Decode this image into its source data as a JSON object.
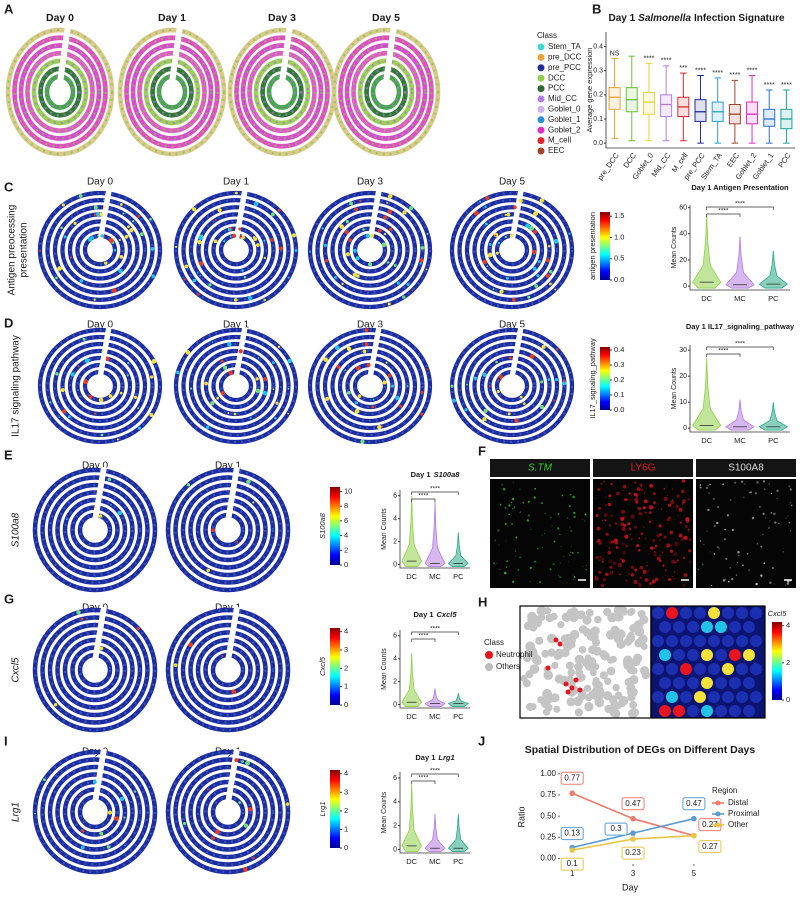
{
  "panels": {
    "A": {
      "letter": "A",
      "days": [
        "Day 0",
        "Day 1",
        "Day 3",
        "Day 5"
      ],
      "legend_title": "Class",
      "classes": [
        {
          "name": "Stem_TA",
          "color": "#3fd8d0"
        },
        {
          "name": "pre_DCC",
          "color": "#e8a23a"
        },
        {
          "name": "pre_PCC",
          "color": "#1f2d96"
        },
        {
          "name": "DCC",
          "color": "#8fcf4a"
        },
        {
          "name": "PCC",
          "color": "#2b6b2e"
        },
        {
          "name": "Mid_CC",
          "color": "#b57be0"
        },
        {
          "name": "Goblet_0",
          "color": "#cdb0ea"
        },
        {
          "name": "Goblet_1",
          "color": "#2a8fd6"
        },
        {
          "name": "Goblet_2",
          "color": "#e22cc6"
        },
        {
          "name": "M_cell",
          "color": "#e0262a"
        },
        {
          "name": "EEC",
          "color": "#a2432a"
        }
      ]
    },
    "B": {
      "letter": "B"
    },
    "C": {
      "letter": "C",
      "row_label": [
        "Antigen preocessing",
        "presentation"
      ],
      "days": [
        "Day 0",
        "Day 1",
        "Day 3",
        "Day 5"
      ],
      "colorbar": {
        "label": "antigen presentation",
        "lim": [
          0,
          1.6
        ],
        "ticks": [
          {
            "value": 0,
            "label": "0.0"
          },
          0.5,
          {
            "value": 1,
            "label": "1.0"
          },
          1.5
        ]
      }
    },
    "D": {
      "letter": "D",
      "row_label": [
        "IL17 signaling pathway"
      ],
      "days": [
        "Day 0",
        "Day 1",
        "Day 3",
        "Day 5"
      ],
      "colorbar": {
        "label": "IL17_signaling_pathway",
        "lim": [
          0,
          0.42
        ],
        "ticks": [
          {
            "value": 0,
            "label": "0.0"
          },
          0.1,
          0.2,
          0.3,
          0.4
        ]
      }
    },
    "E": {
      "letter": "E",
      "row_label": [
        "S100a8"
      ],
      "days": [
        "Day 0",
        "Day 1"
      ],
      "colorbar": {
        "label": "S100a8",
        "lim": [
          0,
          10.6
        ],
        "ticks": [
          0,
          2,
          4,
          6,
          8,
          10
        ]
      }
    },
    "F": {
      "letter": "F",
      "channels": [
        {
          "name": "S.TM",
          "color": "#33cc33"
        },
        {
          "name": "LY6G",
          "color": "#e8141e"
        },
        {
          "name": "S100A8",
          "color": "#d8d8d8"
        }
      ]
    },
    "G": {
      "letter": "G",
      "row_label": [
        "Cxcl5"
      ],
      "days": [
        "Day 0",
        "Day 1"
      ],
      "colorbar": {
        "label": "Cxcl5",
        "lim": [
          0,
          4.2
        ],
        "ticks": [
          0,
          1,
          2,
          3,
          4
        ]
      }
    },
    "H": {
      "letter": "H",
      "legend_title": "Class",
      "classes": [
        {
          "name": "Neutrophil",
          "color": "#e8141e"
        },
        {
          "name": "Others",
          "color": "#bdbdbd"
        }
      ],
      "colorbar": {
        "label": "Cxcl5",
        "lim": [
          0,
          4.2
        ],
        "ticks": [
          0,
          2,
          4
        ]
      }
    },
    "I": {
      "letter": "I",
      "row_label": [
        "Lrg1"
      ],
      "days": [
        "Day 0",
        "Day 1"
      ],
      "colorbar": {
        "label": "Lrg1",
        "lim": [
          0,
          4.2
        ],
        "ticks": [
          0,
          1,
          2,
          3,
          4
        ]
      }
    },
    "J": {
      "letter": "J"
    }
  },
  "chart_data": [
    {
      "type": "box",
      "title": "Day 1",
      "title_italic": "Salmonella",
      "title_end": "Infection Signature",
      "ylabel": "Average gene expression",
      "categories": [
        "pre_DCC",
        "DCC",
        "Goblet_0",
        "Mid_CC",
        "M_cell",
        "pre_PCC",
        "Stem_TA",
        "EEC",
        "Goblet_2",
        "Goblet_1",
        "PCC"
      ],
      "colors": [
        "#e8a23a",
        "#6cbf3a",
        "#e6d23a",
        "#b57be0",
        "#e0262a",
        "#1f2d96",
        "#2a9fd6",
        "#a2432a",
        "#e22cc6",
        "#2a6fd6",
        "#1aa39a"
      ],
      "whislo": [
        0.02,
        0.01,
        0.01,
        0.01,
        0.01,
        0,
        0,
        0,
        0,
        0,
        0
      ],
      "q1": [
        0.14,
        0.13,
        0.12,
        0.11,
        0.11,
        0.09,
        0.09,
        0.08,
        0.08,
        0.07,
        0.06
      ],
      "median": [
        0.19,
        0.18,
        0.17,
        0.16,
        0.15,
        0.13,
        0.13,
        0.12,
        0.12,
        0.1,
        0.1
      ],
      "q3": [
        0.23,
        0.23,
        0.21,
        0.2,
        0.19,
        0.18,
        0.17,
        0.16,
        0.17,
        0.14,
        0.14
      ],
      "whishi": [
        0.35,
        0.36,
        0.33,
        0.32,
        0.29,
        0.28,
        0.27,
        0.26,
        0.28,
        0.22,
        0.22
      ],
      "annotations": [
        "NS",
        null,
        "****",
        "****",
        "***",
        "****",
        "****",
        "****",
        "****",
        "****",
        "****"
      ],
      "ylim": [
        -0.02,
        0.46
      ],
      "yticks": [
        {
          "value": 0,
          "label": "0.0"
        },
        0.1,
        0.2,
        0.3,
        0.4
      ]
    },
    {
      "type": "violin",
      "title": "Day 1 Antigen Presentation",
      "ylabel": "Mean Counts",
      "categories": [
        "DC",
        "MC",
        "PC"
      ],
      "colors": [
        "#8fcf4a",
        "#b57be0",
        "#2aa889"
      ],
      "median": [
        3,
        1,
        1.5
      ],
      "max": [
        55,
        38,
        27
      ],
      "significance": [
        "****",
        "****"
      ],
      "ylim": [
        -3,
        62
      ],
      "yticks": [
        0,
        20,
        40,
        60
      ]
    },
    {
      "type": "violin",
      "title": "Day 1 IL17_signaling_pathway",
      "ylabel": "Mean Counts",
      "categories": [
        "DC",
        "MC",
        "PC"
      ],
      "colors": [
        "#8fcf4a",
        "#b57be0",
        "#2aa889"
      ],
      "median": [
        1,
        0.5,
        0.5
      ],
      "max": [
        27,
        11,
        10
      ],
      "significance": [
        "****",
        "****"
      ],
      "ylim": [
        -1.5,
        32
      ],
      "yticks": [
        0,
        10,
        20,
        30
      ]
    },
    {
      "type": "violin",
      "title": "Day 1",
      "title_gene": "S100a8",
      "ylabel": "Mean Counts",
      "categories": [
        "DC",
        "MC",
        "PC"
      ],
      "colors": [
        "#8fcf4a",
        "#b57be0",
        "#2aa889"
      ],
      "median": [
        0.3,
        0.1,
        0.1
      ],
      "max": [
        6,
        5.5,
        2.8
      ],
      "significance": [
        "****",
        "****"
      ],
      "ylim": [
        -0.3,
        6.5
      ],
      "yticks": [
        0,
        2,
        4,
        6
      ]
    },
    {
      "type": "violin",
      "title": "Day 1",
      "title_gene": "Cxcl5",
      "ylabel": "Mean Counts",
      "categories": [
        "DC",
        "MC",
        "PC"
      ],
      "colors": [
        "#8fcf4a",
        "#b57be0",
        "#2aa889"
      ],
      "median": [
        0.2,
        0.1,
        0.1
      ],
      "max": [
        4.5,
        1.4,
        1
      ],
      "significance": [
        "****",
        "****"
      ],
      "ylim": [
        -0.3,
        6.5
      ],
      "yticks": [
        0,
        2,
        4,
        6
      ]
    },
    {
      "type": "violin",
      "title": "Day 1",
      "title_gene": "Lrg1",
      "ylabel": "Mean Counts",
      "categories": [
        "DC",
        "MC",
        "PC"
      ],
      "colors": [
        "#8fcf4a",
        "#b57be0",
        "#2aa889"
      ],
      "median": [
        0.3,
        0.1,
        0.1
      ],
      "max": [
        5.5,
        3,
        3
      ],
      "significance": [
        "****",
        "****"
      ],
      "ylim": [
        -0.3,
        6.5
      ],
      "yticks": [
        0,
        2,
        4,
        6
      ]
    },
    {
      "type": "line",
      "title": "Spatial Distribution of DEGs on Different Days",
      "xlabel": "Day",
      "ylabel": "Ratio",
      "x": [
        1,
        3,
        5
      ],
      "xlim": [
        0.6,
        5.2
      ],
      "xticks": [
        1,
        3,
        5
      ],
      "ylim": [
        -0.04,
        1.02
      ],
      "yticks": [
        {
          "value": 0,
          "label": "0.00"
        },
        0.25,
        {
          "value": 0.5,
          "label": "0.50"
        },
        0.75,
        {
          "value": 1,
          "label": "1.00"
        }
      ],
      "legend_title": "Region",
      "series": [
        {
          "name": "Distal",
          "color": "#f07a6e",
          "values": [
            0.77,
            0.47,
            0.27
          ]
        },
        {
          "name": "Proximal",
          "color": "#5b9bd5",
          "values": [
            0.13,
            0.3,
            0.47
          ]
        },
        {
          "name": "Other",
          "color": "#e8c547",
          "values": [
            0.1,
            0.23,
            0.27
          ]
        }
      ]
    }
  ]
}
